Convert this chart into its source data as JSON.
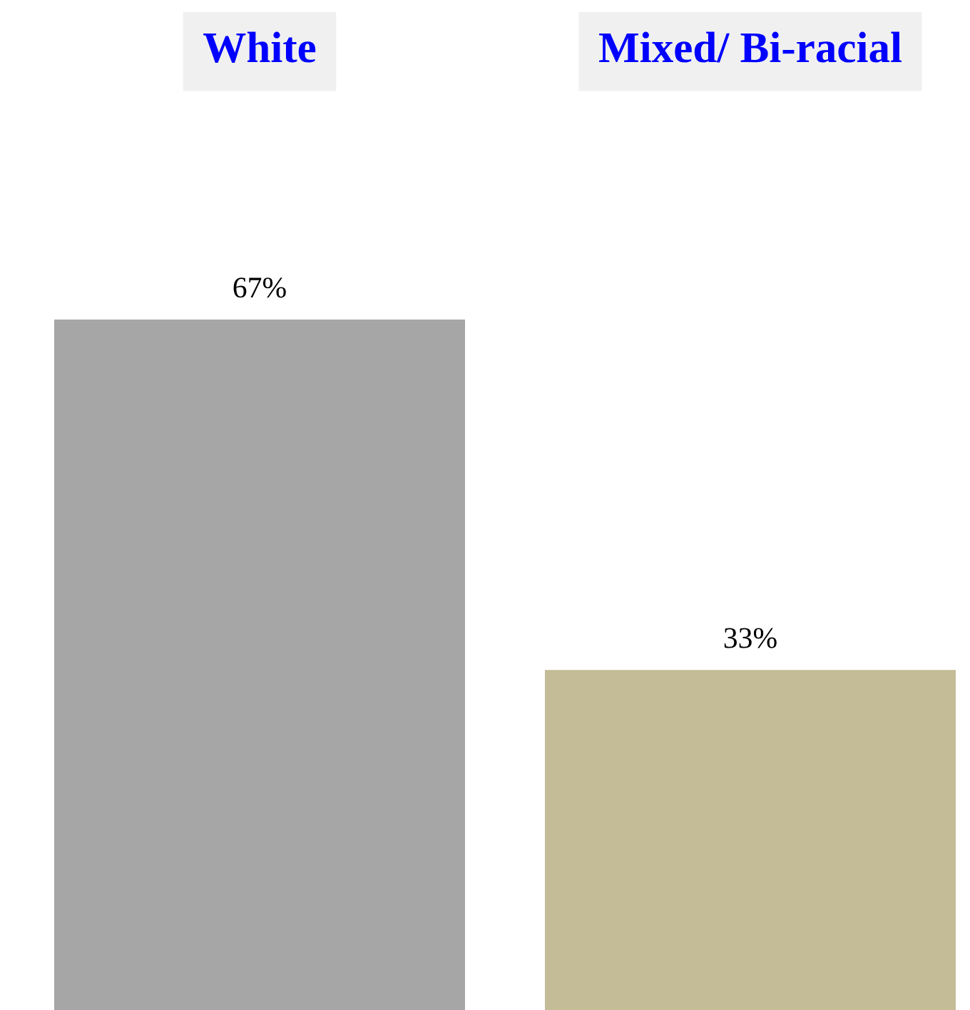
{
  "chart_data": {
    "type": "bar",
    "categories": [
      "White",
      "Mixed/ Bi-racial"
    ],
    "values": [
      67,
      33
    ],
    "colors": [
      "#a6a6a6",
      "#c4bc96"
    ],
    "data_labels": true,
    "value_labels": [
      "67%",
      "33%"
    ],
    "grid": false,
    "legend": false
  }
}
